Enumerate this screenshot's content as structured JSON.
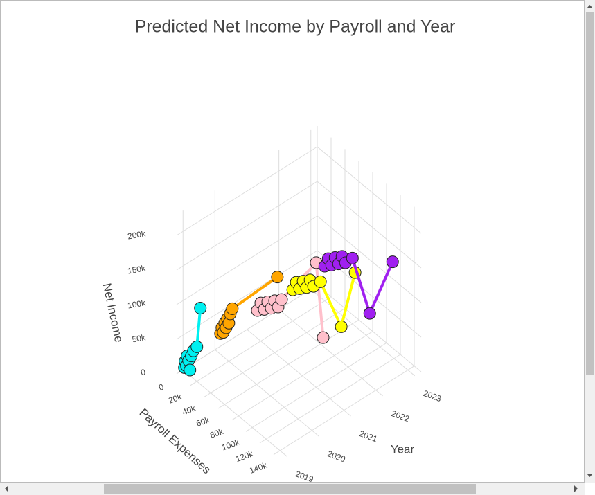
{
  "chart_data": {
    "type": "scatter3d",
    "title": "Predicted Net Income by Payroll and Year",
    "xlabel": "Payroll Expenses",
    "ylabel": "Year",
    "zlabel": "Net Income",
    "xlim": [
      0,
      150000
    ],
    "ylim": [
      2018.8,
      2023.2
    ],
    "zlim": [
      0,
      230000
    ],
    "xticks": [
      0,
      {
        "value": 20000,
        "label": "20k"
      },
      {
        "value": 40000,
        "label": "40k"
      },
      {
        "value": 60000,
        "label": "60k"
      },
      {
        "value": 80000,
        "label": "80k"
      },
      {
        "value": 100000,
        "label": "100k"
      },
      {
        "value": 120000,
        "label": "120k"
      },
      {
        "value": 140000,
        "label": "140k"
      }
    ],
    "yticks": [
      2019,
      2020,
      2021,
      2022,
      2023
    ],
    "zticks": [
      0,
      {
        "value": 50000,
        "label": "50k"
      },
      {
        "value": 100000,
        "label": "100k"
      },
      {
        "value": 150000,
        "label": "150k"
      },
      {
        "value": 200000,
        "label": "200k"
      }
    ],
    "grid": true,
    "series": [
      {
        "color": "#00f0f0",
        "x": [
          2000,
          3000,
          5000,
          6000,
          8000,
          10000,
          12000,
          15000,
          20000,
          25000
        ],
        "y": [
          2019,
          2019,
          2019,
          2019,
          2019,
          2019,
          2019,
          2019,
          2019,
          2019
        ],
        "z": [
          5000,
          15000,
          10000,
          25000,
          20000,
          8000,
          30000,
          40000,
          50000,
          110000
        ]
      },
      {
        "color": "#ffa500",
        "x": [
          8000,
          10000,
          12000,
          14000,
          16000,
          18000,
          20000,
          22000,
          25000,
          90000
        ],
        "y": [
          2020,
          2020,
          2020,
          2020,
          2020,
          2020,
          2020,
          2020,
          2020,
          2020
        ],
        "z": [
          30000,
          40000,
          35000,
          50000,
          45000,
          60000,
          55000,
          70000,
          80000,
          180000
        ]
      },
      {
        "color": "#ffc0cb",
        "x": [
          15000,
          20000,
          25000,
          30000,
          35000,
          40000,
          45000,
          50000,
          100000,
          110000
        ],
        "y": [
          2021,
          2021,
          2021,
          2021,
          2021,
          2021,
          2021,
          2021,
          2021,
          2021
        ],
        "z": [
          40000,
          55000,
          50000,
          65000,
          60000,
          75000,
          70000,
          85000,
          180000,
          80000
        ]
      },
      {
        "color": "#ffff00",
        "x": [
          20000,
          25000,
          30000,
          35000,
          40000,
          45000,
          50000,
          60000,
          90000,
          110000
        ],
        "y": [
          2022,
          2022,
          2022,
          2022,
          2022,
          2022,
          2022,
          2022,
          2022,
          2022
        ],
        "z": [
          45000,
          60000,
          55000,
          70000,
          65000,
          80000,
          75000,
          90000,
          50000,
          145000
        ]
      },
      {
        "color": "#a020f0",
        "x": [
          20000,
          25000,
          30000,
          35000,
          40000,
          45000,
          50000,
          60000,
          85000,
          118000
        ],
        "y": [
          2023,
          2023,
          2023,
          2023,
          2023,
          2023,
          2023,
          2023,
          2023,
          2023
        ],
        "z": [
          50000,
          65000,
          60000,
          75000,
          70000,
          85000,
          80000,
          95000,
          36000,
          138000
        ]
      }
    ]
  }
}
